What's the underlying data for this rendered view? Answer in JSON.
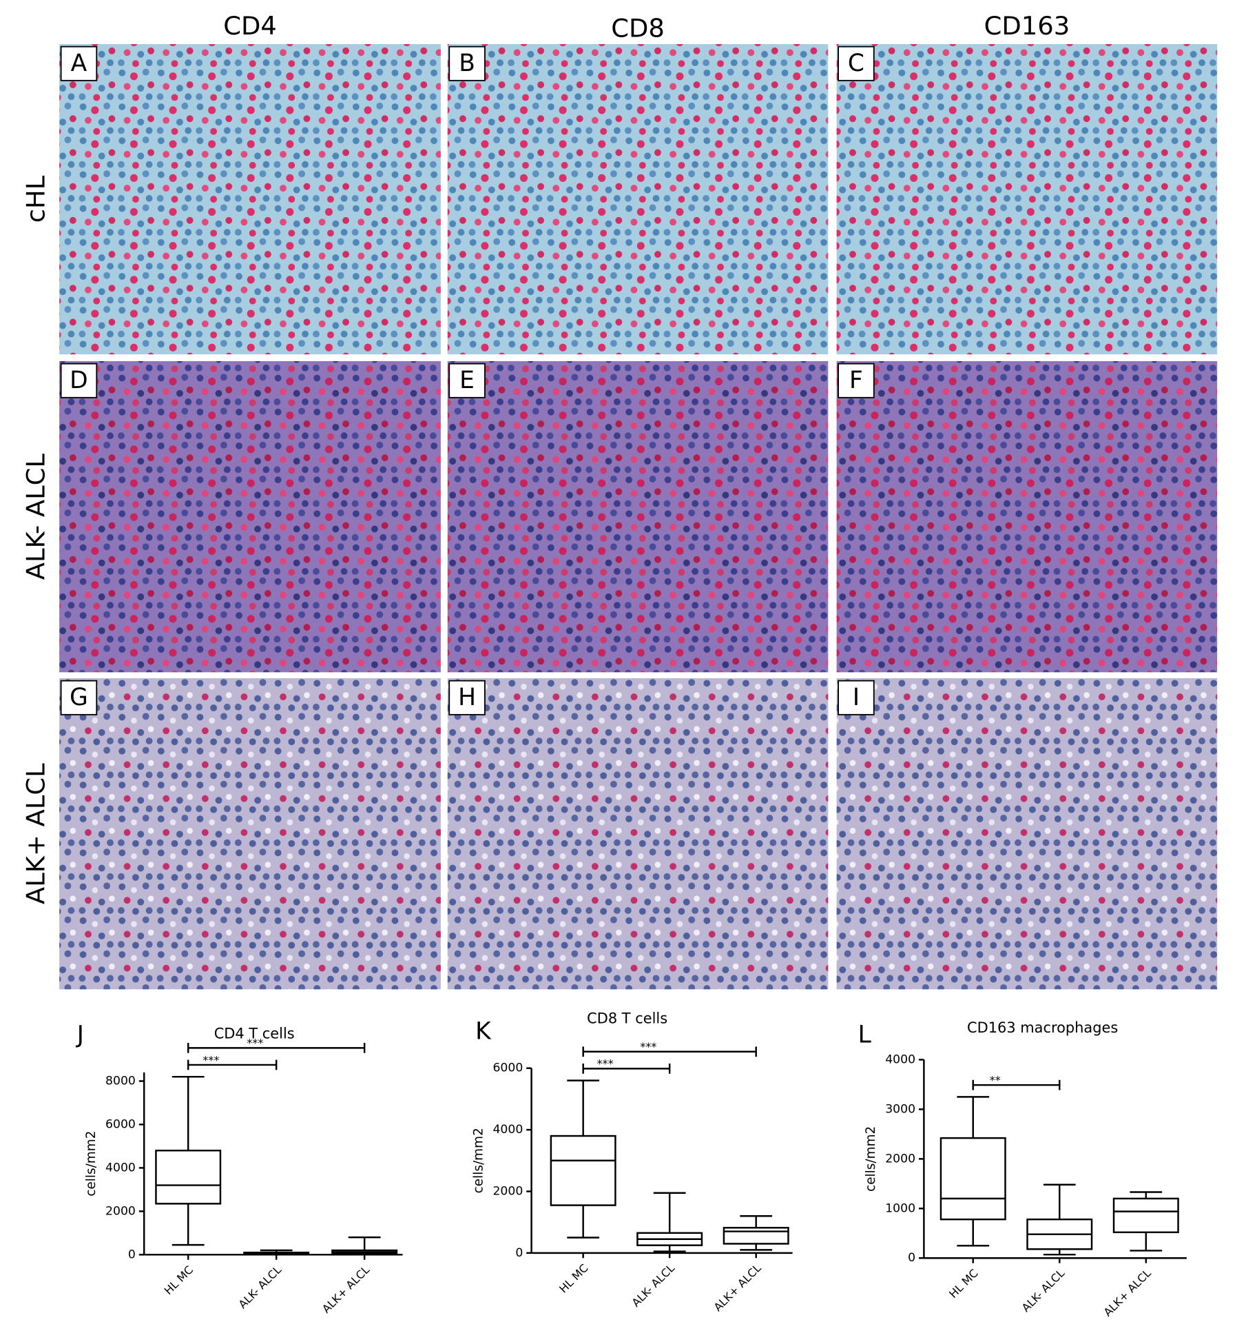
{
  "column_headers": [
    "CD4",
    "CD8",
    "CD163"
  ],
  "row_labels": [
    "cHL",
    "ALK- ALCL",
    "ALK+ ALCL"
  ],
  "panel_letters": [
    "A",
    "B",
    "C",
    "D",
    "E",
    "F",
    "G",
    "H",
    "I"
  ],
  "chart_data": [
    {
      "type": "box",
      "panel_letter": "J",
      "title": "CD4 T cells",
      "y_label": "cells/mm2",
      "categories": [
        "HL MC",
        "ALK- ALCL",
        "ALK+ ALCL"
      ],
      "boxes": [
        {
          "min": 450,
          "q1": 2350,
          "median": 3200,
          "q3": 4800,
          "max": 8200
        },
        {
          "min": 0,
          "q1": 20,
          "median": 50,
          "q3": 100,
          "max": 200
        },
        {
          "min": 0,
          "q1": 50,
          "median": 120,
          "q3": 200,
          "max": 800
        }
      ],
      "ylim": [
        0,
        8400
      ],
      "yticks": [
        0,
        2000,
        4000,
        6000,
        8000
      ],
      "significance": [
        {
          "between": [
            0,
            1
          ],
          "label": "***"
        },
        {
          "between": [
            0,
            2
          ],
          "label": "***"
        }
      ]
    },
    {
      "type": "box",
      "panel_letter": "K",
      "title": "CD8 T cells",
      "y_label": "cells/mm2",
      "categories": [
        "HL MC",
        "ALK- ALCL",
        "ALK+ ALCL"
      ],
      "boxes": [
        {
          "min": 500,
          "q1": 1550,
          "median": 3000,
          "q3": 3800,
          "max": 5600
        },
        {
          "min": 50,
          "q1": 250,
          "median": 450,
          "q3": 650,
          "max": 1950
        },
        {
          "min": 100,
          "q1": 300,
          "median": 700,
          "q3": 820,
          "max": 1200
        }
      ],
      "ylim": [
        0,
        6000
      ],
      "yticks": [
        0,
        2000,
        4000,
        6000
      ],
      "significance": [
        {
          "between": [
            0,
            1
          ],
          "label": "***"
        },
        {
          "between": [
            0,
            2
          ],
          "label": "***"
        }
      ]
    },
    {
      "type": "box",
      "panel_letter": "L",
      "title": "CD163 macrophages",
      "y_label": "cells/mm2",
      "categories": [
        "HL MC",
        "ALK- ALCL",
        "ALK+ ALCL"
      ],
      "boxes": [
        {
          "min": 250,
          "q1": 780,
          "median": 1200,
          "q3": 2420,
          "max": 3250
        },
        {
          "min": 70,
          "q1": 180,
          "median": 480,
          "q3": 780,
          "max": 1480
        },
        {
          "min": 150,
          "q1": 520,
          "median": 940,
          "q3": 1200,
          "max": 1330
        }
      ],
      "ylim": [
        0,
        4000
      ],
      "yticks": [
        0,
        1000,
        2000,
        3000,
        4000
      ],
      "significance": [
        {
          "between": [
            0,
            1
          ],
          "label": "**"
        }
      ]
    }
  ]
}
